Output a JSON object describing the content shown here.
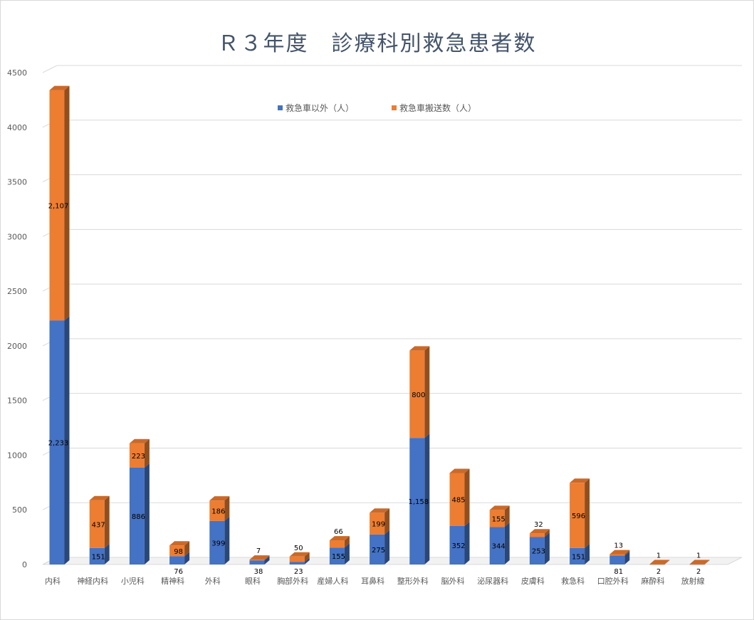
{
  "chart_data": {
    "type": "bar",
    "stacked": true,
    "title": "Ｒ３年度　診療科別救急患者数",
    "ylim": [
      0,
      4500
    ],
    "yticks": [
      0,
      500,
      1000,
      1500,
      2000,
      2500,
      3000,
      3500,
      4000,
      4500
    ],
    "grid": true,
    "legend_position": "top",
    "categories": [
      "内科",
      "神経内科",
      "小児科",
      "精神科",
      "外科",
      "眼科",
      "胸部外科",
      "産婦人科",
      "耳鼻科",
      "整形外科",
      "脳外科",
      "泌尿器科",
      "皮膚科",
      "救急科",
      "口腔外科",
      "麻酔科",
      "放射線"
    ],
    "series": [
      {
        "name": "救急車以外（人）",
        "color": "#4472c4",
        "values": [
          2233,
          151,
          886,
          76,
          399,
          38,
          23,
          155,
          275,
          1158,
          352,
          344,
          253,
          151,
          81,
          2,
          2
        ],
        "labels": [
          "2,233",
          "151",
          "886",
          "76",
          "399",
          "38",
          "23",
          "155",
          "275",
          "1,158",
          "352",
          "344",
          "253",
          "151",
          "81",
          "2",
          "2"
        ]
      },
      {
        "name": "救急車搬送数（人）",
        "color": "#ed7d31",
        "values": [
          2107,
          437,
          223,
          98,
          186,
          7,
          50,
          66,
          199,
          800,
          485,
          155,
          32,
          596,
          13,
          1,
          1
        ],
        "labels": [
          "2,107",
          "437",
          "223",
          "98",
          "186",
          "7",
          "50",
          "66",
          "199",
          "800",
          "485",
          "155",
          "32",
          "596",
          "13",
          "1",
          "1"
        ]
      }
    ]
  }
}
